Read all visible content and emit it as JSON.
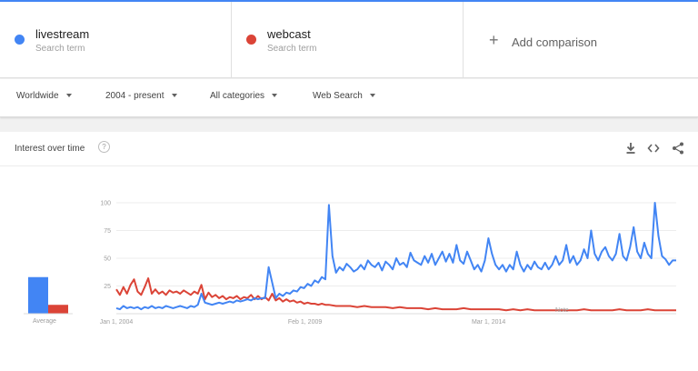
{
  "terms": [
    {
      "name": "livestream",
      "sub": "Search term",
      "color": "#4285f4"
    },
    {
      "name": "webcast",
      "sub": "Search term",
      "color": "#db4437"
    }
  ],
  "add_comparison": {
    "icon": "plus-icon",
    "label": "Add comparison"
  },
  "filters": {
    "region": "Worldwide",
    "time": "2004 - present",
    "category": "All categories",
    "property": "Web Search"
  },
  "card": {
    "title": "Interest over time",
    "help": "?",
    "actions": [
      "download-icon",
      "embed-icon",
      "share-icon"
    ]
  },
  "average_label": "Average",
  "note_label": "Note",
  "chart_data": {
    "type": "line",
    "x_tick_labels": [
      "Jan 1, 2004",
      "Feb 1, 2009",
      "Mar 1, 2014"
    ],
    "x_tick_fractions": [
      0.0,
      0.337,
      0.665
    ],
    "x_range": [
      "2004-01",
      "2017-01"
    ],
    "y_ticks": [
      25,
      50,
      75,
      100
    ],
    "ylim": [
      0,
      100
    ],
    "grid": true,
    "averages": [
      {
        "name": "livestream",
        "value": 33
      },
      {
        "name": "webcast",
        "value": 8
      }
    ],
    "series": [
      {
        "name": "livestream",
        "color": "#4285f4",
        "points": [
          [
            0,
            5
          ],
          [
            2,
            4
          ],
          [
            4,
            7
          ],
          [
            6,
            5
          ],
          [
            8,
            6
          ],
          [
            10,
            5
          ],
          [
            12,
            6
          ],
          [
            14,
            4
          ],
          [
            16,
            6
          ],
          [
            18,
            5
          ],
          [
            20,
            7
          ],
          [
            22,
            5
          ],
          [
            24,
            6
          ],
          [
            26,
            5
          ],
          [
            28,
            7
          ],
          [
            30,
            6
          ],
          [
            32,
            5
          ],
          [
            34,
            6
          ],
          [
            36,
            7
          ],
          [
            38,
            6
          ],
          [
            40,
            5
          ],
          [
            42,
            7
          ],
          [
            44,
            6
          ],
          [
            46,
            8
          ],
          [
            48,
            18
          ],
          [
            50,
            10
          ],
          [
            52,
            9
          ],
          [
            54,
            8
          ],
          [
            56,
            9
          ],
          [
            58,
            10
          ],
          [
            60,
            9
          ],
          [
            62,
            10
          ],
          [
            64,
            11
          ],
          [
            66,
            10
          ],
          [
            68,
            12
          ],
          [
            70,
            11
          ],
          [
            72,
            12
          ],
          [
            74,
            13
          ],
          [
            76,
            12
          ],
          [
            78,
            14
          ],
          [
            80,
            13
          ],
          [
            82,
            14
          ],
          [
            84,
            14
          ],
          [
            86,
            42
          ],
          [
            88,
            28
          ],
          [
            90,
            14
          ],
          [
            92,
            18
          ],
          [
            94,
            16
          ],
          [
            96,
            19
          ],
          [
            98,
            18
          ],
          [
            100,
            21
          ],
          [
            102,
            20
          ],
          [
            104,
            24
          ],
          [
            106,
            23
          ],
          [
            108,
            27
          ],
          [
            110,
            25
          ],
          [
            112,
            30
          ],
          [
            114,
            28
          ],
          [
            116,
            33
          ],
          [
            118,
            31
          ],
          [
            120,
            98
          ],
          [
            122,
            52
          ],
          [
            124,
            37
          ],
          [
            126,
            42
          ],
          [
            128,
            39
          ],
          [
            130,
            45
          ],
          [
            132,
            42
          ],
          [
            134,
            38
          ],
          [
            136,
            40
          ],
          [
            138,
            44
          ],
          [
            140,
            40
          ],
          [
            142,
            48
          ],
          [
            144,
            44
          ],
          [
            146,
            42
          ],
          [
            148,
            46
          ],
          [
            150,
            39
          ],
          [
            152,
            47
          ],
          [
            154,
            44
          ],
          [
            156,
            40
          ],
          [
            158,
            50
          ],
          [
            160,
            44
          ],
          [
            162,
            46
          ],
          [
            164,
            42
          ],
          [
            166,
            55
          ],
          [
            168,
            48
          ],
          [
            170,
            46
          ],
          [
            172,
            44
          ],
          [
            174,
            52
          ],
          [
            176,
            46
          ],
          [
            178,
            54
          ],
          [
            180,
            44
          ],
          [
            182,
            50
          ],
          [
            184,
            56
          ],
          [
            186,
            47
          ],
          [
            188,
            54
          ],
          [
            190,
            46
          ],
          [
            192,
            62
          ],
          [
            194,
            48
          ],
          [
            196,
            45
          ],
          [
            198,
            56
          ],
          [
            200,
            48
          ],
          [
            202,
            40
          ],
          [
            204,
            44
          ],
          [
            206,
            38
          ],
          [
            208,
            48
          ],
          [
            210,
            68
          ],
          [
            212,
            54
          ],
          [
            214,
            44
          ],
          [
            216,
            40
          ],
          [
            218,
            44
          ],
          [
            220,
            38
          ],
          [
            222,
            44
          ],
          [
            224,
            40
          ],
          [
            226,
            56
          ],
          [
            228,
            44
          ],
          [
            230,
            38
          ],
          [
            232,
            44
          ],
          [
            234,
            40
          ],
          [
            236,
            47
          ],
          [
            238,
            42
          ],
          [
            240,
            40
          ],
          [
            242,
            46
          ],
          [
            244,
            40
          ],
          [
            246,
            44
          ],
          [
            248,
            52
          ],
          [
            250,
            44
          ],
          [
            252,
            48
          ],
          [
            254,
            62
          ],
          [
            256,
            46
          ],
          [
            258,
            52
          ],
          [
            260,
            44
          ],
          [
            262,
            48
          ],
          [
            264,
            58
          ],
          [
            266,
            50
          ],
          [
            268,
            75
          ],
          [
            270,
            54
          ],
          [
            272,
            48
          ],
          [
            274,
            56
          ],
          [
            276,
            60
          ],
          [
            278,
            52
          ],
          [
            280,
            48
          ],
          [
            282,
            54
          ],
          [
            284,
            72
          ],
          [
            286,
            52
          ],
          [
            288,
            48
          ],
          [
            290,
            60
          ],
          [
            292,
            78
          ],
          [
            294,
            56
          ],
          [
            296,
            50
          ],
          [
            298,
            64
          ],
          [
            300,
            54
          ],
          [
            302,
            50
          ],
          [
            304,
            100
          ],
          [
            306,
            70
          ],
          [
            308,
            52
          ],
          [
            310,
            49
          ],
          [
            312,
            44
          ],
          [
            314,
            48
          ],
          [
            316,
            48
          ]
        ]
      },
      {
        "name": "webcast",
        "color": "#db4437",
        "points": [
          [
            0,
            22
          ],
          [
            2,
            17
          ],
          [
            4,
            24
          ],
          [
            6,
            18
          ],
          [
            8,
            26
          ],
          [
            10,
            31
          ],
          [
            12,
            20
          ],
          [
            14,
            17
          ],
          [
            16,
            24
          ],
          [
            18,
            32
          ],
          [
            20,
            18
          ],
          [
            22,
            22
          ],
          [
            24,
            18
          ],
          [
            26,
            20
          ],
          [
            28,
            17
          ],
          [
            30,
            21
          ],
          [
            32,
            19
          ],
          [
            34,
            20
          ],
          [
            36,
            18
          ],
          [
            38,
            21
          ],
          [
            40,
            19
          ],
          [
            42,
            17
          ],
          [
            44,
            20
          ],
          [
            46,
            18
          ],
          [
            48,
            26
          ],
          [
            50,
            13
          ],
          [
            52,
            19
          ],
          [
            54,
            15
          ],
          [
            56,
            17
          ],
          [
            58,
            14
          ],
          [
            60,
            16
          ],
          [
            62,
            13
          ],
          [
            64,
            15
          ],
          [
            66,
            14
          ],
          [
            68,
            16
          ],
          [
            70,
            13
          ],
          [
            72,
            15
          ],
          [
            74,
            14
          ],
          [
            76,
            17
          ],
          [
            78,
            13
          ],
          [
            80,
            16
          ],
          [
            82,
            13
          ],
          [
            84,
            15
          ],
          [
            86,
            12
          ],
          [
            88,
            18
          ],
          [
            90,
            12
          ],
          [
            92,
            14
          ],
          [
            94,
            11
          ],
          [
            96,
            13
          ],
          [
            98,
            11
          ],
          [
            100,
            12
          ],
          [
            102,
            10
          ],
          [
            104,
            11
          ],
          [
            106,
            9
          ],
          [
            108,
            10
          ],
          [
            110,
            9
          ],
          [
            112,
            9
          ],
          [
            114,
            8
          ],
          [
            116,
            9
          ],
          [
            118,
            8
          ],
          [
            120,
            8
          ],
          [
            124,
            7
          ],
          [
            128,
            7
          ],
          [
            132,
            7
          ],
          [
            136,
            6
          ],
          [
            140,
            7
          ],
          [
            144,
            6
          ],
          [
            148,
            6
          ],
          [
            152,
            6
          ],
          [
            156,
            5
          ],
          [
            160,
            6
          ],
          [
            164,
            5
          ],
          [
            168,
            5
          ],
          [
            172,
            5
          ],
          [
            176,
            4
          ],
          [
            180,
            5
          ],
          [
            184,
            4
          ],
          [
            188,
            4
          ],
          [
            192,
            4
          ],
          [
            196,
            5
          ],
          [
            200,
            4
          ],
          [
            204,
            4
          ],
          [
            208,
            4
          ],
          [
            212,
            4
          ],
          [
            216,
            4
          ],
          [
            220,
            3
          ],
          [
            224,
            4
          ],
          [
            228,
            3
          ],
          [
            232,
            4
          ],
          [
            236,
            3
          ],
          [
            240,
            3
          ],
          [
            244,
            3
          ],
          [
            248,
            3
          ],
          [
            252,
            3
          ],
          [
            256,
            3
          ],
          [
            260,
            3
          ],
          [
            264,
            4
          ],
          [
            268,
            3
          ],
          [
            272,
            3
          ],
          [
            276,
            3
          ],
          [
            280,
            3
          ],
          [
            284,
            4
          ],
          [
            288,
            3
          ],
          [
            292,
            3
          ],
          [
            296,
            3
          ],
          [
            300,
            4
          ],
          [
            304,
            3
          ],
          [
            308,
            3
          ],
          [
            312,
            3
          ],
          [
            316,
            3
          ]
        ]
      }
    ]
  }
}
